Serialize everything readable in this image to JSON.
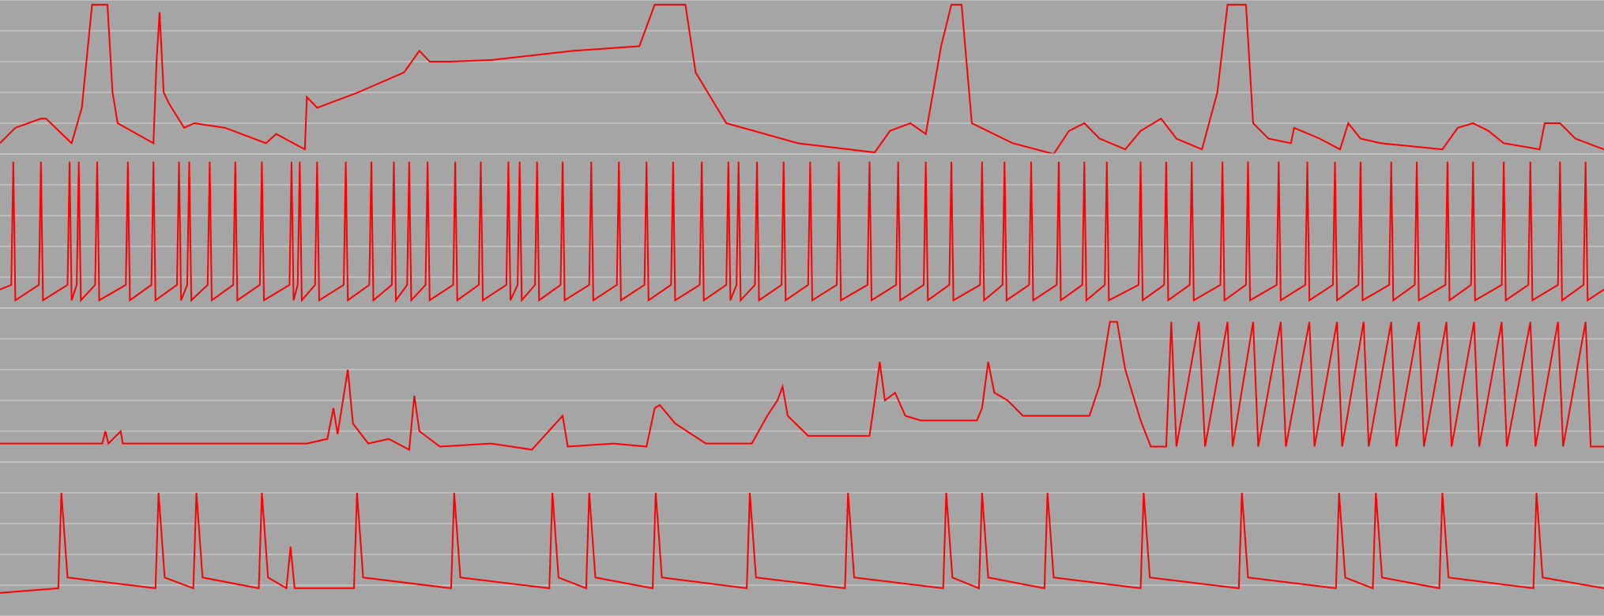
{
  "chart_data": [
    {
      "type": "line",
      "color": "#ff0000",
      "grid": true,
      "xlim": [
        0,
        1568
      ],
      "ylim": [
        0,
        100
      ],
      "yticks": [
        0,
        20,
        40,
        60,
        80,
        100
      ],
      "x": [
        0,
        15,
        40,
        45,
        70,
        80,
        90,
        105,
        110,
        115,
        150,
        153,
        156,
        160,
        165,
        180,
        190,
        220,
        260,
        270,
        298,
        300,
        310,
        350,
        395,
        410,
        420,
        440,
        480,
        560,
        625,
        640,
        670,
        680,
        710,
        780,
        855,
        870,
        890,
        905,
        920,
        930,
        940,
        950,
        990,
        1030,
        1045,
        1060,
        1075,
        1100,
        1115,
        1135,
        1150,
        1175,
        1190,
        1200,
        1218,
        1225,
        1240,
        1262,
        1265,
        1290,
        1310,
        1318,
        1330,
        1350,
        1410,
        1425,
        1440,
        1455,
        1470,
        1505,
        1510,
        1525,
        1540,
        1568
      ],
      "values": [
        7,
        17,
        23,
        23,
        7,
        30,
        97,
        97,
        40,
        20,
        7,
        60,
        92,
        40,
        33,
        17,
        20,
        17,
        7,
        13,
        3,
        37,
        30,
        40,
        53,
        67,
        60,
        60,
        61,
        67,
        70,
        97,
        97,
        53,
        20,
        7,
        1,
        15,
        20,
        13,
        70,
        97,
        97,
        20,
        7,
        0,
        15,
        20,
        10,
        3,
        15,
        23,
        10,
        3,
        40,
        97,
        97,
        20,
        10,
        7,
        17,
        10,
        3,
        20,
        10,
        7,
        3,
        17,
        20,
        15,
        7,
        3,
        20,
        20,
        10,
        3
      ]
    },
    {
      "type": "line",
      "color": "#ff0000",
      "grid": true,
      "xlim": [
        0,
        1568
      ],
      "ylim": [
        0,
        100
      ],
      "yticks": [
        0,
        20,
        40,
        60,
        80,
        100
      ],
      "x": [
        0,
        11,
        13,
        15,
        38,
        40,
        42,
        66,
        68,
        70,
        75,
        77,
        79,
        93,
        95,
        97,
        123,
        125,
        127,
        148,
        150,
        152,
        173,
        175,
        177,
        183,
        185,
        187,
        203,
        205,
        207,
        228,
        230,
        232,
        254,
        256,
        258,
        283,
        285,
        287,
        291,
        293,
        295,
        308,
        310,
        312,
        336,
        338,
        340,
        361,
        363,
        365,
        383,
        385,
        387,
        398,
        400,
        402,
        416,
        418,
        420,
        443,
        445,
        447,
        468,
        470,
        472,
        495,
        497,
        499,
        506,
        508,
        510,
        523,
        525,
        527,
        548,
        550,
        552,
        576,
        578,
        580,
        603,
        605,
        607,
        630,
        632,
        634,
        656,
        658,
        660,
        684,
        686,
        688,
        710,
        712,
        714,
        720,
        722,
        724,
        738,
        740,
        742,
        764,
        766,
        768,
        790,
        792,
        794,
        818,
        820,
        822,
        848,
        850,
        852,
        876,
        878,
        880,
        903,
        905,
        907,
        928,
        930,
        932,
        958,
        960,
        962,
        980,
        982,
        984,
        1006,
        1008,
        1010,
        1033,
        1035,
        1037,
        1058,
        1060,
        1062,
        1080,
        1082,
        1084,
        1113,
        1115,
        1117,
        1138,
        1140,
        1142,
        1163,
        1165,
        1167,
        1193,
        1195,
        1197,
        1218,
        1220,
        1222,
        1248,
        1250,
        1252,
        1276,
        1278,
        1280,
        1303,
        1305,
        1307,
        1328,
        1330,
        1332,
        1358,
        1360,
        1362,
        1383,
        1385,
        1387,
        1413,
        1415,
        1417,
        1438,
        1440,
        1442,
        1468,
        1470,
        1472,
        1494,
        1496,
        1498,
        1523,
        1525,
        1527,
        1548,
        1550,
        1552,
        1568
      ],
      "values": [
        12,
        15,
        95,
        5,
        15,
        95,
        5,
        15,
        95,
        5,
        15,
        95,
        5,
        15,
        95,
        5,
        15,
        95,
        5,
        15,
        95,
        5,
        15,
        95,
        5,
        15,
        95,
        5,
        15,
        95,
        5,
        15,
        95,
        5,
        15,
        95,
        5,
        15,
        95,
        5,
        15,
        95,
        5,
        15,
        95,
        5,
        15,
        95,
        5,
        15,
        95,
        5,
        15,
        95,
        5,
        15,
        95,
        5,
        15,
        95,
        5,
        15,
        95,
        5,
        15,
        95,
        5,
        15,
        95,
        5,
        15,
        95,
        5,
        15,
        95,
        5,
        15,
        95,
        5,
        15,
        95,
        5,
        15,
        95,
        5,
        15,
        95,
        5,
        15,
        95,
        5,
        15,
        95,
        5,
        15,
        95,
        5,
        15,
        95,
        5,
        15,
        95,
        5,
        15,
        95,
        5,
        15,
        95,
        5,
        15,
        95,
        5,
        15,
        95,
        5,
        15,
        95,
        5,
        15,
        95,
        5,
        15,
        95,
        5,
        15,
        95,
        5,
        15,
        95,
        5,
        15,
        95,
        5,
        15,
        95,
        5,
        15,
        95,
        5,
        15,
        95,
        5,
        15,
        95,
        5,
        15,
        95,
        5,
        15,
        95,
        5,
        15,
        95,
        5,
        15,
        95,
        5,
        15,
        95,
        5,
        15,
        95,
        5,
        15,
        95,
        5,
        15,
        95,
        5,
        15,
        95,
        5,
        15,
        95,
        5,
        15,
        95,
        5,
        15,
        95,
        5,
        15,
        95,
        5,
        15,
        95,
        5,
        15,
        95,
        5,
        15,
        95,
        5,
        12
      ]
    },
    {
      "type": "line",
      "color": "#ff0000",
      "grid": true,
      "xlim": [
        0,
        1568
      ],
      "ylim": [
        0,
        100
      ],
      "yticks": [
        0,
        20,
        40,
        60,
        80,
        100
      ],
      "x": [
        0,
        100,
        103,
        106,
        118,
        120,
        300,
        320,
        326,
        330,
        340,
        345,
        360,
        380,
        400,
        405,
        410,
        430,
        480,
        520,
        550,
        555,
        600,
        632,
        640,
        645,
        660,
        690,
        735,
        750,
        760,
        765,
        770,
        790,
        850,
        855,
        860,
        865,
        875,
        885,
        900,
        955,
        960,
        966,
        972,
        985,
        1000,
        1065,
        1075,
        1085,
        1092,
        1100,
        1115,
        1125,
        1140,
        1145,
        1150,
        1172,
        1178,
        1200,
        1205,
        1225,
        1230,
        1252,
        1257,
        1280,
        1285,
        1307,
        1312,
        1333,
        1338,
        1360,
        1365,
        1387,
        1392,
        1414,
        1419,
        1441,
        1446,
        1468,
        1473,
        1496,
        1501,
        1523,
        1528,
        1550,
        1555,
        1568
      ],
      "values": [
        12,
        12,
        20,
        12,
        20,
        12,
        12,
        15,
        35,
        18,
        60,
        25,
        12,
        15,
        8,
        43,
        20,
        10,
        12,
        8,
        30,
        10,
        12,
        10,
        35,
        37,
        25,
        12,
        12,
        30,
        40,
        49,
        30,
        17,
        17,
        40,
        65,
        40,
        45,
        30,
        27,
        27,
        35,
        65,
        45,
        40,
        30,
        30,
        50,
        91,
        91,
        60,
        27,
        10,
        10,
        91,
        10,
        91,
        10,
        91,
        10,
        91,
        10,
        91,
        10,
        91,
        10,
        91,
        10,
        91,
        10,
        91,
        10,
        91,
        10,
        91,
        10,
        91,
        10,
        91,
        10,
        91,
        10,
        91,
        10,
        91,
        10,
        10
      ]
    },
    {
      "type": "line",
      "color": "#ff0000",
      "grid": true,
      "xlim": [
        0,
        1568
      ],
      "ylim": [
        0,
        100
      ],
      "yticks": [
        0,
        20,
        40,
        60,
        80,
        100
      ],
      "x": [
        0,
        57,
        60,
        66,
        152,
        155,
        161,
        189,
        192,
        198,
        253,
        256,
        262,
        280,
        284,
        288,
        346,
        349,
        355,
        441,
        444,
        450,
        537,
        540,
        546,
        573,
        576,
        582,
        638,
        641,
        647,
        730,
        733,
        739,
        826,
        829,
        835,
        922,
        925,
        931,
        957,
        960,
        966,
        1021,
        1024,
        1030,
        1115,
        1118,
        1124,
        1211,
        1214,
        1220,
        1306,
        1309,
        1315,
        1342,
        1345,
        1351,
        1407,
        1410,
        1416,
        1499,
        1502,
        1508,
        1568
      ],
      "values": [
        15,
        18,
        80,
        25,
        18,
        80,
        25,
        18,
        80,
        25,
        18,
        80,
        25,
        18,
        45,
        18,
        18,
        80,
        25,
        18,
        80,
        25,
        18,
        80,
        25,
        18,
        80,
        25,
        18,
        80,
        25,
        18,
        80,
        25,
        18,
        80,
        25,
        18,
        80,
        25,
        18,
        80,
        25,
        18,
        80,
        25,
        18,
        80,
        25,
        18,
        80,
        25,
        18,
        80,
        25,
        18,
        80,
        25,
        18,
        80,
        25,
        18,
        80,
        25,
        18
      ]
    }
  ]
}
